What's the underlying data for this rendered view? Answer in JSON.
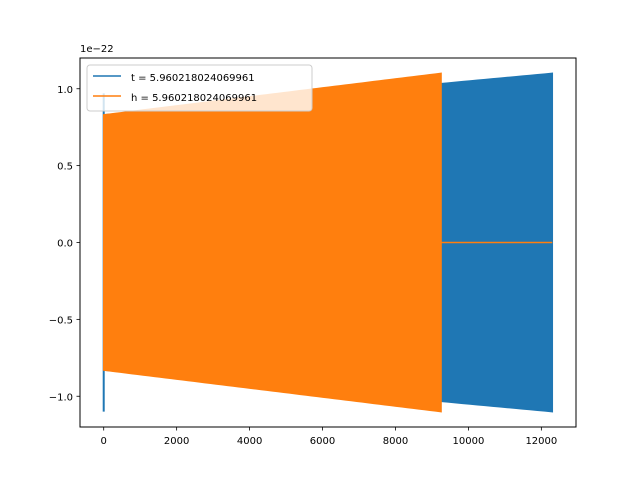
{
  "chart_data": {
    "type": "line",
    "title": "",
    "xlabel": "",
    "ylabel": "",
    "y_offset_label": "1e−22",
    "xlim": [
      -650,
      12950
    ],
    "ylim": [
      -1.2,
      1.2
    ],
    "xticks": [
      0,
      2000,
      4000,
      6000,
      8000,
      10000,
      12000
    ],
    "xtick_labels": [
      "0",
      "2000",
      "4000",
      "6000",
      "8000",
      "10000",
      "12000"
    ],
    "yticks": [
      -1.0,
      -0.5,
      0.0,
      0.5,
      1.0
    ],
    "ytick_labels": [
      "−1.0",
      "−0.5",
      "0.0",
      "0.5",
      "1.0"
    ],
    "grid": false,
    "legend_position": "upper-left",
    "series": [
      {
        "name": "t = 5.960218024069961",
        "color": "#1f77b4",
        "style": "dense-oscillation",
        "start_spike": {
          "x": 0,
          "ymin": -1.1,
          "ymax": 0.97
        },
        "envelope": {
          "x": [
            0,
            12300
          ],
          "upper": [
            0.83,
            1.1
          ],
          "lower": [
            -0.83,
            -1.1
          ]
        }
      },
      {
        "name": "h = 5.960218024069961",
        "color": "#ff7f0e",
        "style": "dense-oscillation",
        "envelope": {
          "x": [
            0,
            9250
          ],
          "upper": [
            0.83,
            1.1
          ],
          "lower": [
            -0.83,
            -1.1
          ]
        },
        "tail": {
          "x": [
            9250,
            12300
          ],
          "y": 0.0
        }
      }
    ]
  }
}
